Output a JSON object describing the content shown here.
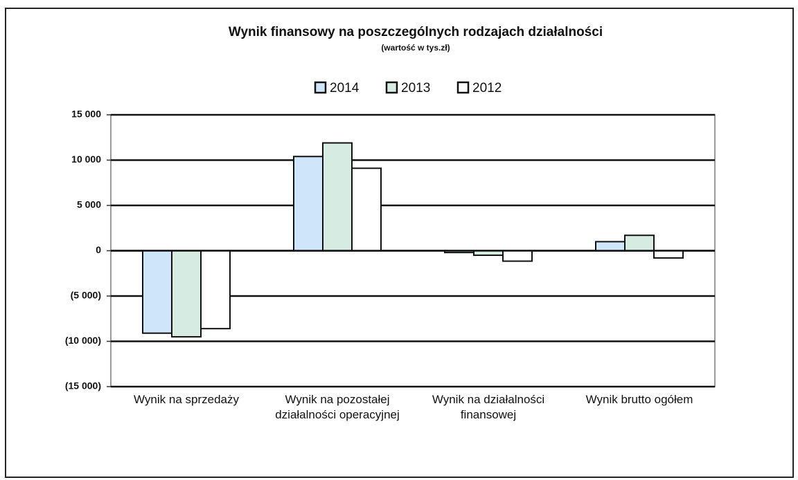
{
  "chart_data": {
    "type": "bar",
    "title": "Wynik finansowy na poszczególnych rodzajach działalności",
    "subtitle": "(wartość w tys.zł)",
    "categories": [
      "Wynik na sprzedaży",
      "Wynik na pozostałej działalności operacyjnej",
      "Wynik na działalności finansowej",
      "Wynik brutto ogółem"
    ],
    "series": [
      {
        "name": "2014",
        "color": "#cfe5fa",
        "values": [
          -9100,
          10400,
          -200,
          1000
        ]
      },
      {
        "name": "2013",
        "color": "#d6ebe2",
        "values": [
          -9500,
          11900,
          -500,
          1700
        ]
      },
      {
        "name": "2012",
        "color": "#ffffff",
        "values": [
          -8600,
          9100,
          -1150,
          -800
        ]
      }
    ],
    "ylim": [
      -15000,
      15000
    ],
    "yticks": [
      {
        "value": -15000,
        "label": "(15 000)"
      },
      {
        "value": -10000,
        "label": "(10 000)"
      },
      {
        "value": -5000,
        "label": "(5 000)"
      },
      0,
      {
        "value": 5000,
        "label": "5 000"
      },
      {
        "value": 10000,
        "label": "10 000"
      },
      {
        "value": 15000,
        "label": "15 000"
      }
    ],
    "grid": true,
    "legend": "top"
  }
}
